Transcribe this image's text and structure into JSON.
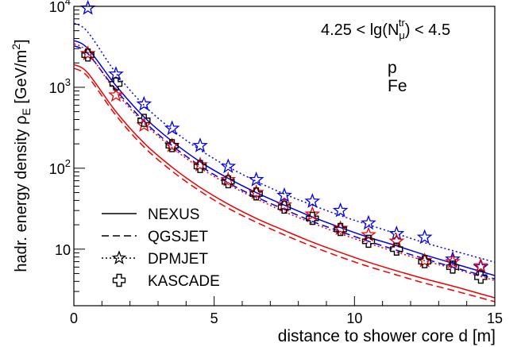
{
  "chart_data": {
    "type": "scatter",
    "title": "",
    "xlabel": "distance to shower core d [m]",
    "ylabel_main": "hadr. energy density ρ",
    "ylabel_sub": "E",
    "ylabel_unit": "[GeV/m",
    "ylabel_unit_sup": "2",
    "ylabel_close": "]",
    "xlim": [
      0,
      15
    ],
    "ylim": [
      2,
      10000
    ],
    "log_y": true,
    "x_ticks": [
      0,
      5,
      10,
      15
    ],
    "x_tick_labels": [
      "0",
      "5",
      "10",
      "15"
    ],
    "y_ticks": [
      10,
      100,
      1000,
      10000
    ],
    "y_tick_labels": [
      {
        "base": "10",
        "exp": ""
      },
      {
        "base": "10",
        "exp": "2"
      },
      {
        "base": "10",
        "exp": "3"
      },
      {
        "base": "10",
        "exp": "4"
      }
    ],
    "cut_label": {
      "prefix": "4.25 < lg(N",
      "sub": "μ",
      "sup": "tr",
      "suffix": ") < 4.5"
    },
    "primary_labels": [
      {
        "text": "p",
        "color": "#0000ee"
      },
      {
        "text": "Fe",
        "color": "#ee0000"
      }
    ],
    "legend": [
      {
        "label": "NEXUS",
        "style": "solid"
      },
      {
        "label": "QGSJET",
        "style": "dashed"
      },
      {
        "label": "DPMJET",
        "style": "dotted-star"
      },
      {
        "label": "KASCADE",
        "style": "cross"
      }
    ],
    "legend_position": "bottom-left",
    "x_points": [
      0.5,
      1.5,
      2.5,
      3.5,
      4.5,
      5.5,
      6.5,
      7.5,
      8.5,
      9.5,
      10.5,
      11.5,
      12.5,
      13.5,
      14.5
    ],
    "series": [
      {
        "name": "NEXUS",
        "primary": "p",
        "color": "#0000ee",
        "style": "solid",
        "y": [
          3000,
          1050,
          430,
          215,
          120,
          75,
          50,
          35,
          25,
          18.5,
          14,
          11,
          8.5,
          6.7,
          5.3
        ]
      },
      {
        "name": "NEXUS",
        "primary": "Fe",
        "color": "#ee0000",
        "style": "solid",
        "y": [
          1500,
          500,
          205,
          103,
          58,
          36,
          24,
          17,
          12.2,
          9.1,
          6.9,
          5.4,
          4.3,
          3.5,
          2.8
        ]
      },
      {
        "name": "QGSJET",
        "primary": "p",
        "color": "#0000ee",
        "style": "dashed",
        "y": [
          2600,
          930,
          380,
          190,
          107,
          66,
          44,
          31,
          22,
          16.5,
          12.5,
          9.7,
          7.6,
          6.0,
          4.8
        ]
      },
      {
        "name": "QGSJET",
        "primary": "Fe",
        "color": "#ee0000",
        "style": "dashed",
        "y": [
          1350,
          450,
          183,
          92,
          52,
          32,
          21.5,
          15,
          10.8,
          8,
          6.1,
          4.8,
          3.8,
          3.1,
          2.5
        ]
      },
      {
        "name": "DPMJET",
        "primary": "p",
        "color": "#0000ee",
        "style": "dotted",
        "y": [
          4800,
          1500,
          600,
          300,
          168,
          104,
          69,
          48,
          35,
          26,
          20,
          15.5,
          12,
          9.6,
          7.7
        ]
      },
      {
        "name": "DPMJET",
        "primary": "Fe",
        "color": "#ee0000",
        "style": "dotted",
        "y": [
          2700,
          880,
          360,
          180,
          101,
          63,
          42,
          29,
          21,
          15.5,
          11.8,
          9.2,
          7.2,
          5.8,
          4.6
        ]
      },
      {
        "name": "DPMJET",
        "primary": "p",
        "color": "#0000ee",
        "style": "star-markers",
        "y": [
          9500,
          1450,
          620,
          310,
          190,
          105,
          72,
          46,
          39,
          30,
          21,
          15.5,
          14,
          7.5,
          6.0
        ]
      },
      {
        "name": "DPMJET",
        "primary": "Fe",
        "color": "#ee0000",
        "style": "star-markers",
        "y": [
          2600,
          800,
          340,
          190,
          110,
          72,
          50,
          35,
          27,
          18,
          15,
          12.5,
          7.2,
          7.0,
          6.2
        ]
      },
      {
        "name": "KASCADE",
        "primary": "data",
        "color": "#000000",
        "style": "cross-markers",
        "y": [
          2500,
          1100,
          390,
          190,
          105,
          68,
          48,
          33,
          24,
          17.5,
          12.5,
          10,
          7,
          6,
          4.5
        ]
      }
    ]
  }
}
